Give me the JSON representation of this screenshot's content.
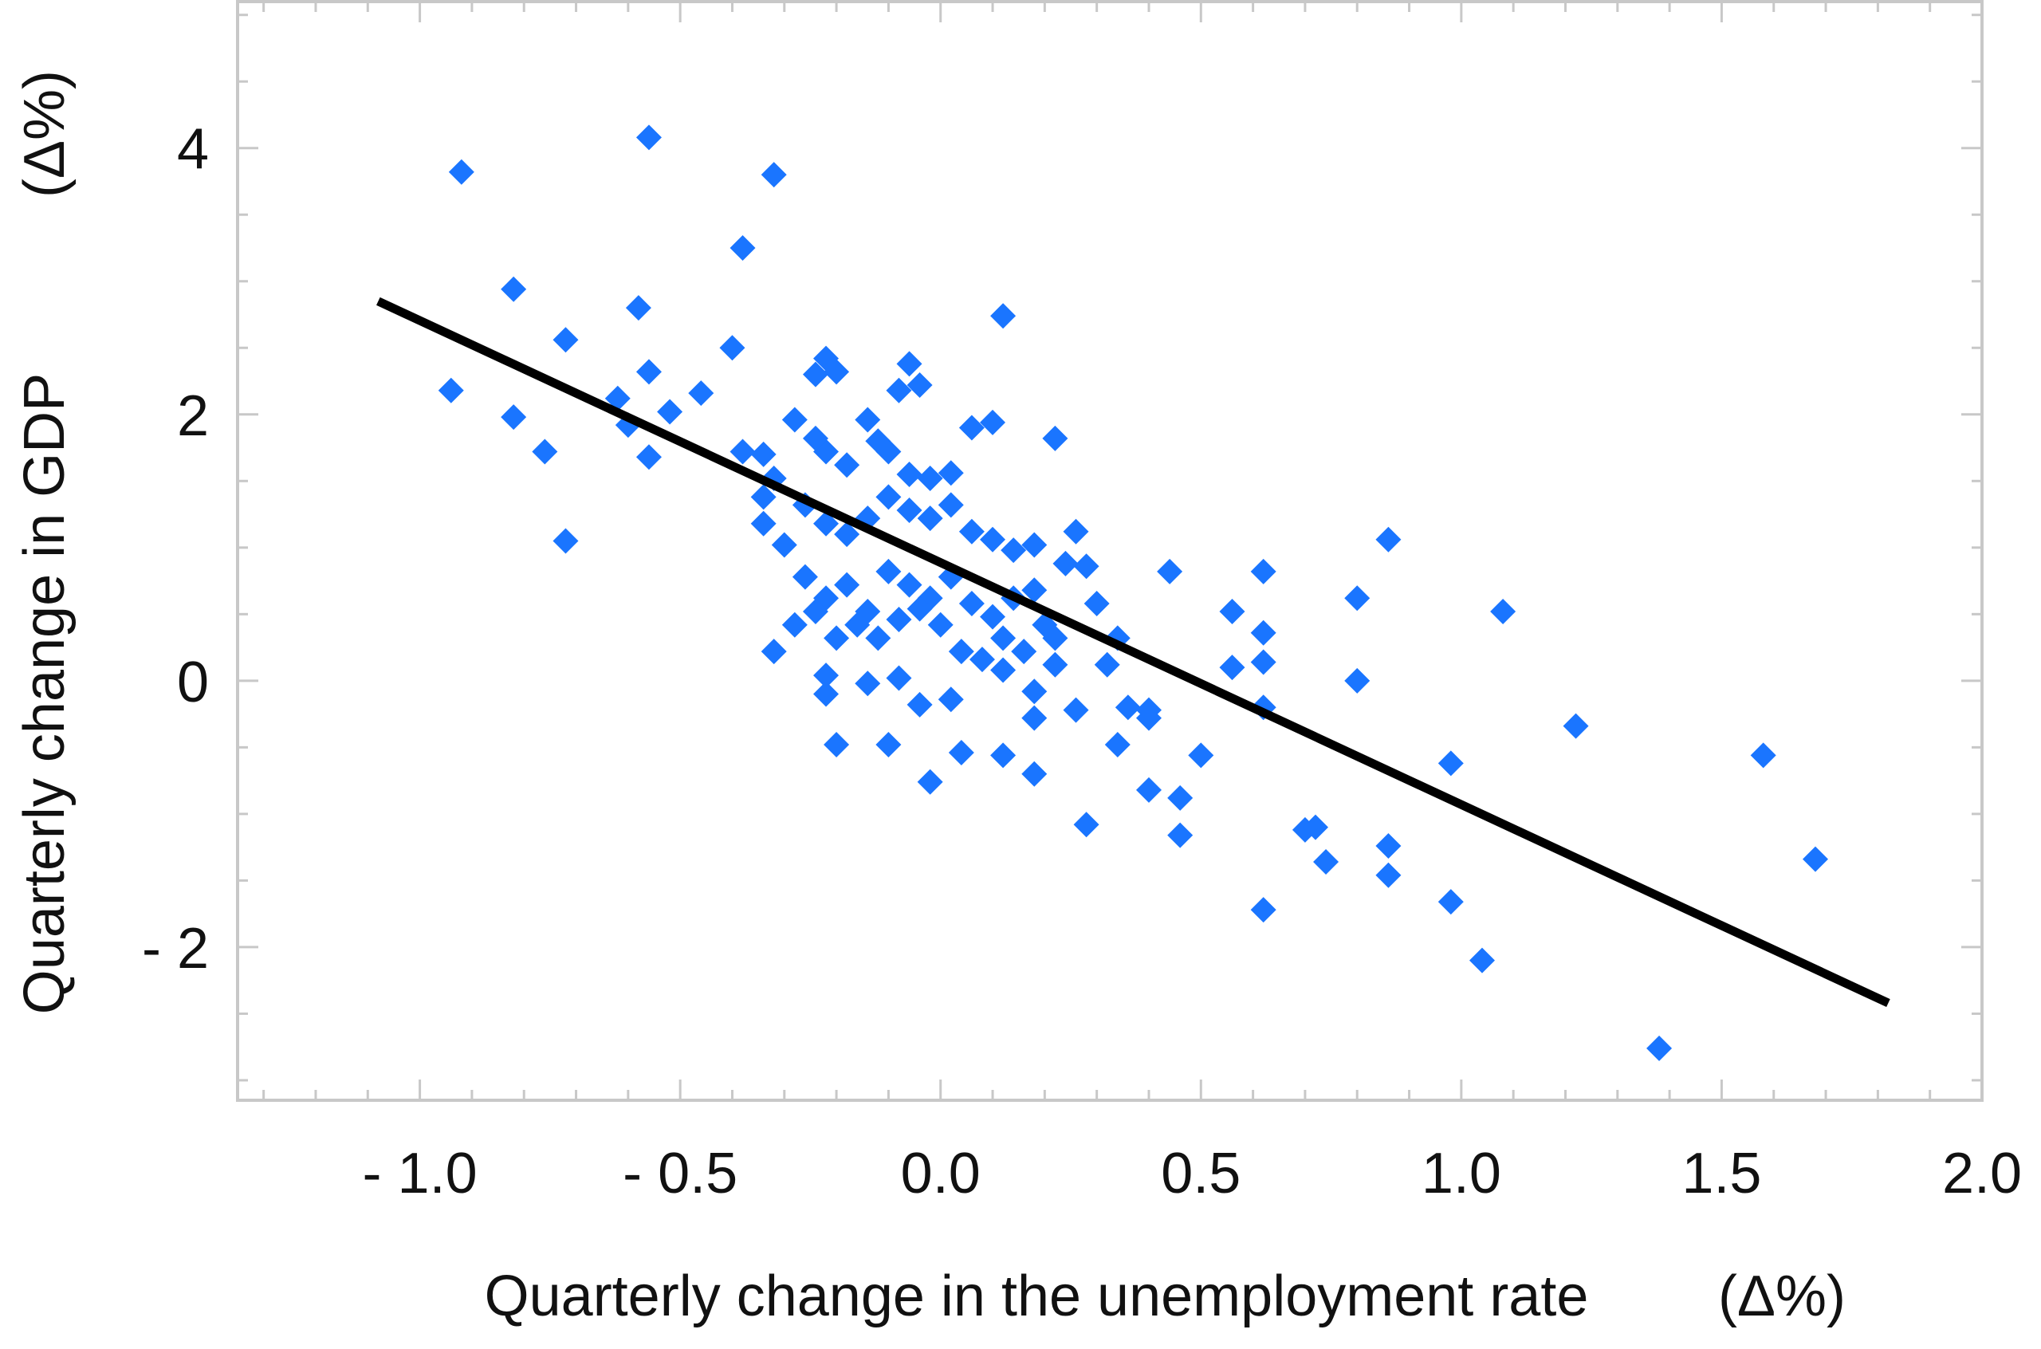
{
  "chart_data": {
    "type": "scatter",
    "xlabel": "Quarterly change in the unemployment rate",
    "xlabel_unit": "(Δ%)",
    "ylabel": "Quarterly change in GDP",
    "ylabel_unit": "(Δ%)",
    "xlim": [
      -1.35,
      2.0
    ],
    "ylim": [
      -3.15,
      5.1
    ],
    "x_ticks": [
      -1.0,
      -0.5,
      0.0,
      0.5,
      1.0,
      1.5,
      2.0
    ],
    "x_tick_labels": [
      "- 1.0",
      "- 0.5",
      "0.0",
      "0.5",
      "1.0",
      "1.5",
      "2.0"
    ],
    "y_ticks": [
      -2,
      0,
      2,
      4
    ],
    "y_tick_labels": [
      "- 2",
      "0",
      "2",
      "4"
    ],
    "grid": false,
    "marker_color": "#1a75ff",
    "line_color": "#000000",
    "fit_line": {
      "x": [
        -1.08,
        1.82
      ],
      "y": [
        2.85,
        -2.42
      ]
    },
    "points": [
      [
        -0.92,
        3.82
      ],
      [
        -0.56,
        4.08
      ],
      [
        -0.32,
        3.8
      ],
      [
        -0.38,
        3.25
      ],
      [
        -0.82,
        2.94
      ],
      [
        -0.94,
        2.18
      ],
      [
        -0.82,
        1.98
      ],
      [
        -0.76,
        1.72
      ],
      [
        -0.72,
        1.05
      ],
      [
        -0.72,
        2.56
      ],
      [
        -0.62,
        2.12
      ],
      [
        -0.6,
        1.92
      ],
      [
        -0.56,
        2.32
      ],
      [
        -0.52,
        2.02
      ],
      [
        -0.56,
        1.68
      ],
      [
        -0.46,
        2.16
      ],
      [
        -0.58,
        2.8
      ],
      [
        -0.4,
        2.5
      ],
      [
        -0.38,
        1.72
      ],
      [
        -0.34,
        1.7
      ],
      [
        -0.32,
        1.52
      ],
      [
        -0.34,
        1.38
      ],
      [
        -0.34,
        1.18
      ],
      [
        -0.3,
        1.02
      ],
      [
        -0.28,
        1.96
      ],
      [
        -0.24,
        2.3
      ],
      [
        -0.22,
        2.42
      ],
      [
        -0.2,
        2.32
      ],
      [
        -0.22,
        1.72
      ],
      [
        -0.24,
        1.82
      ],
      [
        -0.18,
        1.62
      ],
      [
        -0.14,
        1.96
      ],
      [
        -0.12,
        1.8
      ],
      [
        -0.1,
        1.72
      ],
      [
        -0.08,
        2.18
      ],
      [
        -0.06,
        2.38
      ],
      [
        -0.04,
        2.22
      ],
      [
        -0.06,
        1.55
      ],
      [
        -0.02,
        1.52
      ],
      [
        0.02,
        1.56
      ],
      [
        0.06,
        1.9
      ],
      [
        0.1,
        1.94
      ],
      [
        0.12,
        2.74
      ],
      [
        0.22,
        1.82
      ],
      [
        -0.26,
        1.32
      ],
      [
        -0.22,
        1.18
      ],
      [
        -0.18,
        1.1
      ],
      [
        -0.14,
        1.22
      ],
      [
        -0.1,
        1.38
      ],
      [
        -0.06,
        1.28
      ],
      [
        -0.02,
        1.22
      ],
      [
        0.02,
        1.32
      ],
      [
        0.06,
        1.12
      ],
      [
        0.1,
        1.06
      ],
      [
        0.14,
        0.98
      ],
      [
        0.18,
        1.02
      ],
      [
        0.26,
        1.12
      ],
      [
        0.28,
        0.86
      ],
      [
        0.24,
        0.88
      ],
      [
        -0.26,
        0.78
      ],
      [
        -0.22,
        0.62
      ],
      [
        -0.18,
        0.72
      ],
      [
        -0.14,
        0.52
      ],
      [
        -0.1,
        0.82
      ],
      [
        -0.06,
        0.72
      ],
      [
        -0.02,
        0.62
      ],
      [
        0.02,
        0.78
      ],
      [
        0.06,
        0.58
      ],
      [
        0.1,
        0.48
      ],
      [
        0.14,
        0.62
      ],
      [
        0.18,
        0.68
      ],
      [
        0.2,
        0.42
      ],
      [
        0.22,
        0.32
      ],
      [
        0.3,
        0.58
      ],
      [
        -0.28,
        0.42
      ],
      [
        -0.24,
        0.52
      ],
      [
        -0.2,
        0.32
      ],
      [
        -0.16,
        0.42
      ],
      [
        -0.12,
        0.32
      ],
      [
        -0.08,
        0.46
      ],
      [
        -0.04,
        0.54
      ],
      [
        0.0,
        0.42
      ],
      [
        0.04,
        0.22
      ],
      [
        0.08,
        0.16
      ],
      [
        0.12,
        0.08
      ],
      [
        0.16,
        0.22
      ],
      [
        0.12,
        0.32
      ],
      [
        -0.32,
        0.22
      ],
      [
        -0.22,
        0.04
      ],
      [
        -0.22,
        -0.1
      ],
      [
        -0.14,
        -0.02
      ],
      [
        -0.08,
        0.02
      ],
      [
        -0.04,
        -0.18
      ],
      [
        0.02,
        -0.14
      ],
      [
        -0.2,
        -0.48
      ],
      [
        -0.1,
        -0.48
      ],
      [
        -0.02,
        -0.76
      ],
      [
        0.04,
        -0.54
      ],
      [
        0.12,
        -0.56
      ],
      [
        0.18,
        -0.7
      ],
      [
        0.18,
        -0.28
      ],
      [
        0.18,
        -0.08
      ],
      [
        0.22,
        0.12
      ],
      [
        0.26,
        -0.22
      ],
      [
        0.32,
        0.12
      ],
      [
        0.34,
        0.32
      ],
      [
        0.36,
        -0.2
      ],
      [
        0.4,
        -0.22
      ],
      [
        0.4,
        -0.28
      ],
      [
        0.34,
        -0.48
      ],
      [
        0.28,
        -1.08
      ],
      [
        0.4,
        -0.82
      ],
      [
        0.46,
        -0.88
      ],
      [
        0.46,
        -1.16
      ],
      [
        0.5,
        -0.56
      ],
      [
        0.44,
        0.82
      ],
      [
        0.56,
        0.52
      ],
      [
        0.56,
        0.1
      ],
      [
        0.62,
        0.82
      ],
      [
        0.62,
        0.36
      ],
      [
        0.62,
        0.14
      ],
      [
        0.62,
        -0.2
      ],
      [
        0.62,
        -1.72
      ],
      [
        0.7,
        -1.12
      ],
      [
        0.72,
        -1.1
      ],
      [
        0.74,
        -1.36
      ],
      [
        0.8,
        0.62
      ],
      [
        0.8,
        0.0
      ],
      [
        0.86,
        1.06
      ],
      [
        0.86,
        -1.24
      ],
      [
        0.86,
        -1.46
      ],
      [
        0.98,
        -0.62
      ],
      [
        0.98,
        -1.66
      ],
      [
        1.04,
        -2.1
      ],
      [
        1.08,
        0.52
      ],
      [
        1.22,
        -0.34
      ],
      [
        1.38,
        -2.76
      ],
      [
        1.58,
        -0.56
      ],
      [
        1.68,
        -1.34
      ]
    ]
  }
}
